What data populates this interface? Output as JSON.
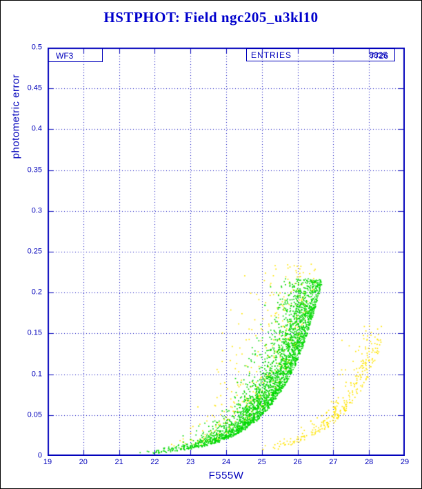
{
  "header": {
    "title": "HSTPHOT: Field ngc205_u3kl10",
    "title_color": "#0000cc"
  },
  "plot": {
    "detector_label": "WF3",
    "entries_label": "ENTRIES",
    "entries_values": [
      "8825",
      "7726"
    ],
    "xlabel": "F555W",
    "ylabel": "photometric error",
    "axis_color": "#0000bb",
    "grid_style": "dashed"
  },
  "chart_data": {
    "type": "scatter",
    "title": "HSTPHOT: Field ngc205_u3kl10",
    "xlabel": "F555W",
    "ylabel": "photometric error",
    "xlim": [
      19,
      29
    ],
    "ylim": [
      0,
      0.5
    ],
    "xticks": [
      19,
      20,
      21,
      22,
      23,
      24,
      25,
      26,
      27,
      28,
      29
    ],
    "xtick_labels": [
      "19",
      "20",
      "21",
      "22",
      "23",
      "24",
      "25",
      "26",
      "27",
      "28",
      "29"
    ],
    "yticks": [
      0,
      0.05,
      0.1,
      0.15,
      0.2,
      0.25,
      0.3,
      0.35,
      0.4,
      0.45,
      0.5
    ],
    "ytick_labels": [
      "0",
      "0.05",
      "0.1",
      "0.15",
      "0.2",
      "0.25",
      "0.3",
      "0.35",
      "0.4",
      "0.45",
      "0.5"
    ],
    "grid": "dashed",
    "legend": null,
    "annotations": [
      {
        "text": "WF3",
        "position": "top-left-inside"
      },
      {
        "text": "ENTRIES 8825 / 7726 (overprinted)",
        "position": "top-right-inside-box"
      }
    ],
    "series": [
      {
        "name": "yellow-detections-main-band",
        "description": "Sparse yellow points scattered around and above the main error band; error rises exponentially from ~0.005 at F555W~22.5 to ~0.22 at F555W~26.8",
        "color": "#ffe400",
        "marker_px": 1.7,
        "count": 750,
        "m_min": 22.2,
        "m_max": 26.9,
        "m_bias": 0.38,
        "err_A": 2.3e-11,
        "err_k": 0.866,
        "spread_sigma": 0.9,
        "err_cap": 0.235,
        "err_floor": 0.002
      },
      {
        "name": "yellow-detections-faint-branch",
        "description": "Second lower yellow sequence: error rising from ~0.005 at F555W~25 to ~0.12 at F555W~28.3",
        "color": "#ffe400",
        "marker_px": 1.7,
        "count": 330,
        "m_min": 24.6,
        "m_max": 28.35,
        "m_bias": 0.45,
        "err_A": 6.45e-13,
        "err_k": 0.92,
        "spread_sigma": 0.3,
        "err_cap": 0.16,
        "err_floor": 0.002
      },
      {
        "name": "green-detections-main-band",
        "description": "Dense green band: photometric error rising exponentially from ~0.005 at F555W~22.5 to a cutoff of ~0.217 at F555W~26.75; sparse outliers above the band",
        "color": "#00d800",
        "marker_px": 1.7,
        "count": 3500,
        "m_min": 21.2,
        "m_max": 26.75,
        "m_bias": 0.3,
        "err_A": 1.95e-11,
        "err_k": 0.866,
        "spread_sigma": 0.45,
        "err_cap": 0.217,
        "err_floor": 0.002
      }
    ]
  }
}
